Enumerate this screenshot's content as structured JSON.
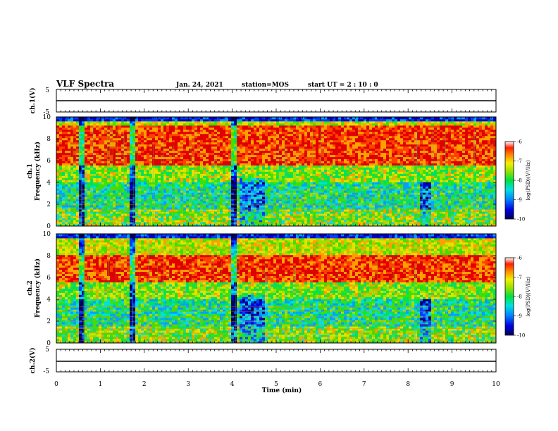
{
  "header": {
    "title": "VLF Spectra",
    "date": "Jan. 24, 2021",
    "station": "station=MOS",
    "start": "start  UT =   2 : 10 : 0"
  },
  "colors": {
    "spectrum_scale": [
      "#00005a",
      "#0000c8",
      "#0040ff",
      "#00a0ff",
      "#00e0e0",
      "#00e060",
      "#40e000",
      "#a0e000",
      "#e8e000",
      "#ffa000",
      "#ff4000",
      "#e00000"
    ],
    "frame": "#000000"
  },
  "chart_data": [
    {
      "type": "line",
      "name": "ch1-waveform",
      "ylabel": "ch.1(V)",
      "ylim": [
        -5,
        5
      ],
      "yticks": [
        "5",
        "-5"
      ],
      "xlim": [
        0,
        10
      ],
      "level": 0
    },
    {
      "type": "heatmap",
      "name": "ch1-spectrogram",
      "ylabel": "ch.1\nFrequency (kHz)",
      "ylim": [
        0,
        10
      ],
      "yticks": [
        "0",
        "2",
        "4",
        "6",
        "8",
        "10"
      ],
      "xlim": [
        0,
        10
      ],
      "colorbar": {
        "label": "log(PSD)(V²/Hz)",
        "ticks": [
          "-6",
          "-7",
          "-8",
          "-9",
          "-10"
        ],
        "range": [
          -10,
          -6
        ]
      },
      "high_power_band_khz": [
        5.5,
        9.2
      ],
      "dark_bursts_min": [
        0.6,
        1.75,
        4.05
      ]
    },
    {
      "type": "heatmap",
      "name": "ch2-spectrogram",
      "ylabel": "ch.2\nFrequency (kHz)",
      "ylim": [
        0,
        10
      ],
      "yticks": [
        "0",
        "2",
        "4",
        "6",
        "8",
        "10"
      ],
      "xlim": [
        0,
        10
      ],
      "colorbar": {
        "label": "log(PSD)(V²/Hz)",
        "ticks": [
          "-6",
          "-7",
          "-8",
          "-9",
          "-10"
        ],
        "range": [
          -10,
          -6
        ]
      },
      "high_power_band_khz": [
        5.5,
        8.0
      ],
      "dark_bursts_min": [
        0.6,
        1.75,
        4.05
      ]
    },
    {
      "type": "line",
      "name": "ch2-waveform",
      "ylabel": "ch.2(V)",
      "ylim": [
        -5,
        5
      ],
      "yticks": [
        "5",
        "-5"
      ],
      "xlim": [
        0,
        10
      ],
      "level": 0
    }
  ],
  "xaxis": {
    "label": "Time  (min)",
    "ticks": [
      "0",
      "1",
      "2",
      "3",
      "4",
      "5",
      "6",
      "7",
      "8",
      "9",
      "10"
    ]
  }
}
